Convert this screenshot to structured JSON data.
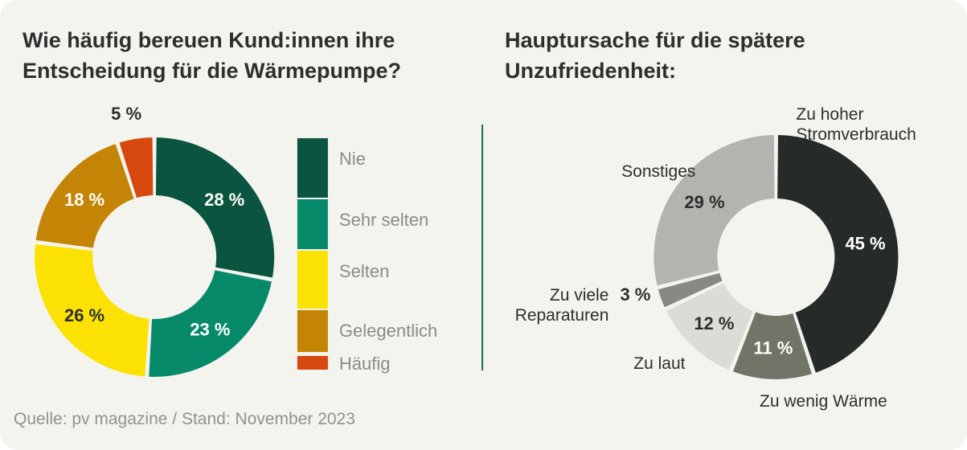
{
  "colors": {
    "background": "#f4f4ef",
    "title": "#2b2f2d",
    "legend_text": "#8c8c86",
    "source_text": "#8f928d",
    "divider": "#1f6b52"
  },
  "source": {
    "text": "Quelle: pv magazine   /  Stand: November 2023"
  },
  "chart_data": [
    {
      "type": "pie",
      "donut": true,
      "title": "Wie häufig bereuen Kund:innen ihre\nEntscheidung für die Wärmepumpe?",
      "legend_position": "right",
      "slices": [
        {
          "label": "Nie",
          "value": 28,
          "display": "28 %",
          "color": "#0b5540",
          "text_color": "#ffffff"
        },
        {
          "label": "Sehr selten",
          "value": 23,
          "display": "23 %",
          "color": "#078a6a",
          "text_color": "#ffffff"
        },
        {
          "label": "Selten",
          "value": 26,
          "display": "26 %",
          "color": "#fce104",
          "text_color": "#2b2f2d"
        },
        {
          "label": "Gelegentlich",
          "value": 18,
          "display": "18 %",
          "color": "#c48406",
          "text_color": "#ffffff"
        },
        {
          "label": "Häufig",
          "value": 5,
          "display": "5 %",
          "color": "#d6480e",
          "text_color": "#2b2f2d"
        }
      ]
    },
    {
      "type": "pie",
      "donut": true,
      "title": "Hauptursache für die spätere\nUnzufriedenheit:",
      "slices": [
        {
          "label": "Zu hoher\nStromverbrauch",
          "value": 45,
          "display": "45 %",
          "color": "#262b29",
          "text_color": "#ffffff"
        },
        {
          "label": "Zu wenig Wärme",
          "value": 11,
          "display": "11 %",
          "color": "#717567",
          "text_color": "#ffffff"
        },
        {
          "label": "Zu laut",
          "value": 12,
          "display": "12 %",
          "color": "#dcdcd7",
          "text_color": "#2b2f2d"
        },
        {
          "label": "Zu viele\nReparaturen",
          "value": 3,
          "display": "3 %",
          "color": "#878985",
          "text_color": "#2b2f2d"
        },
        {
          "label": "Sonstiges",
          "value": 29,
          "display": "29 %",
          "color": "#b3b3b0",
          "text_color": "#2b2f2d"
        }
      ]
    }
  ]
}
